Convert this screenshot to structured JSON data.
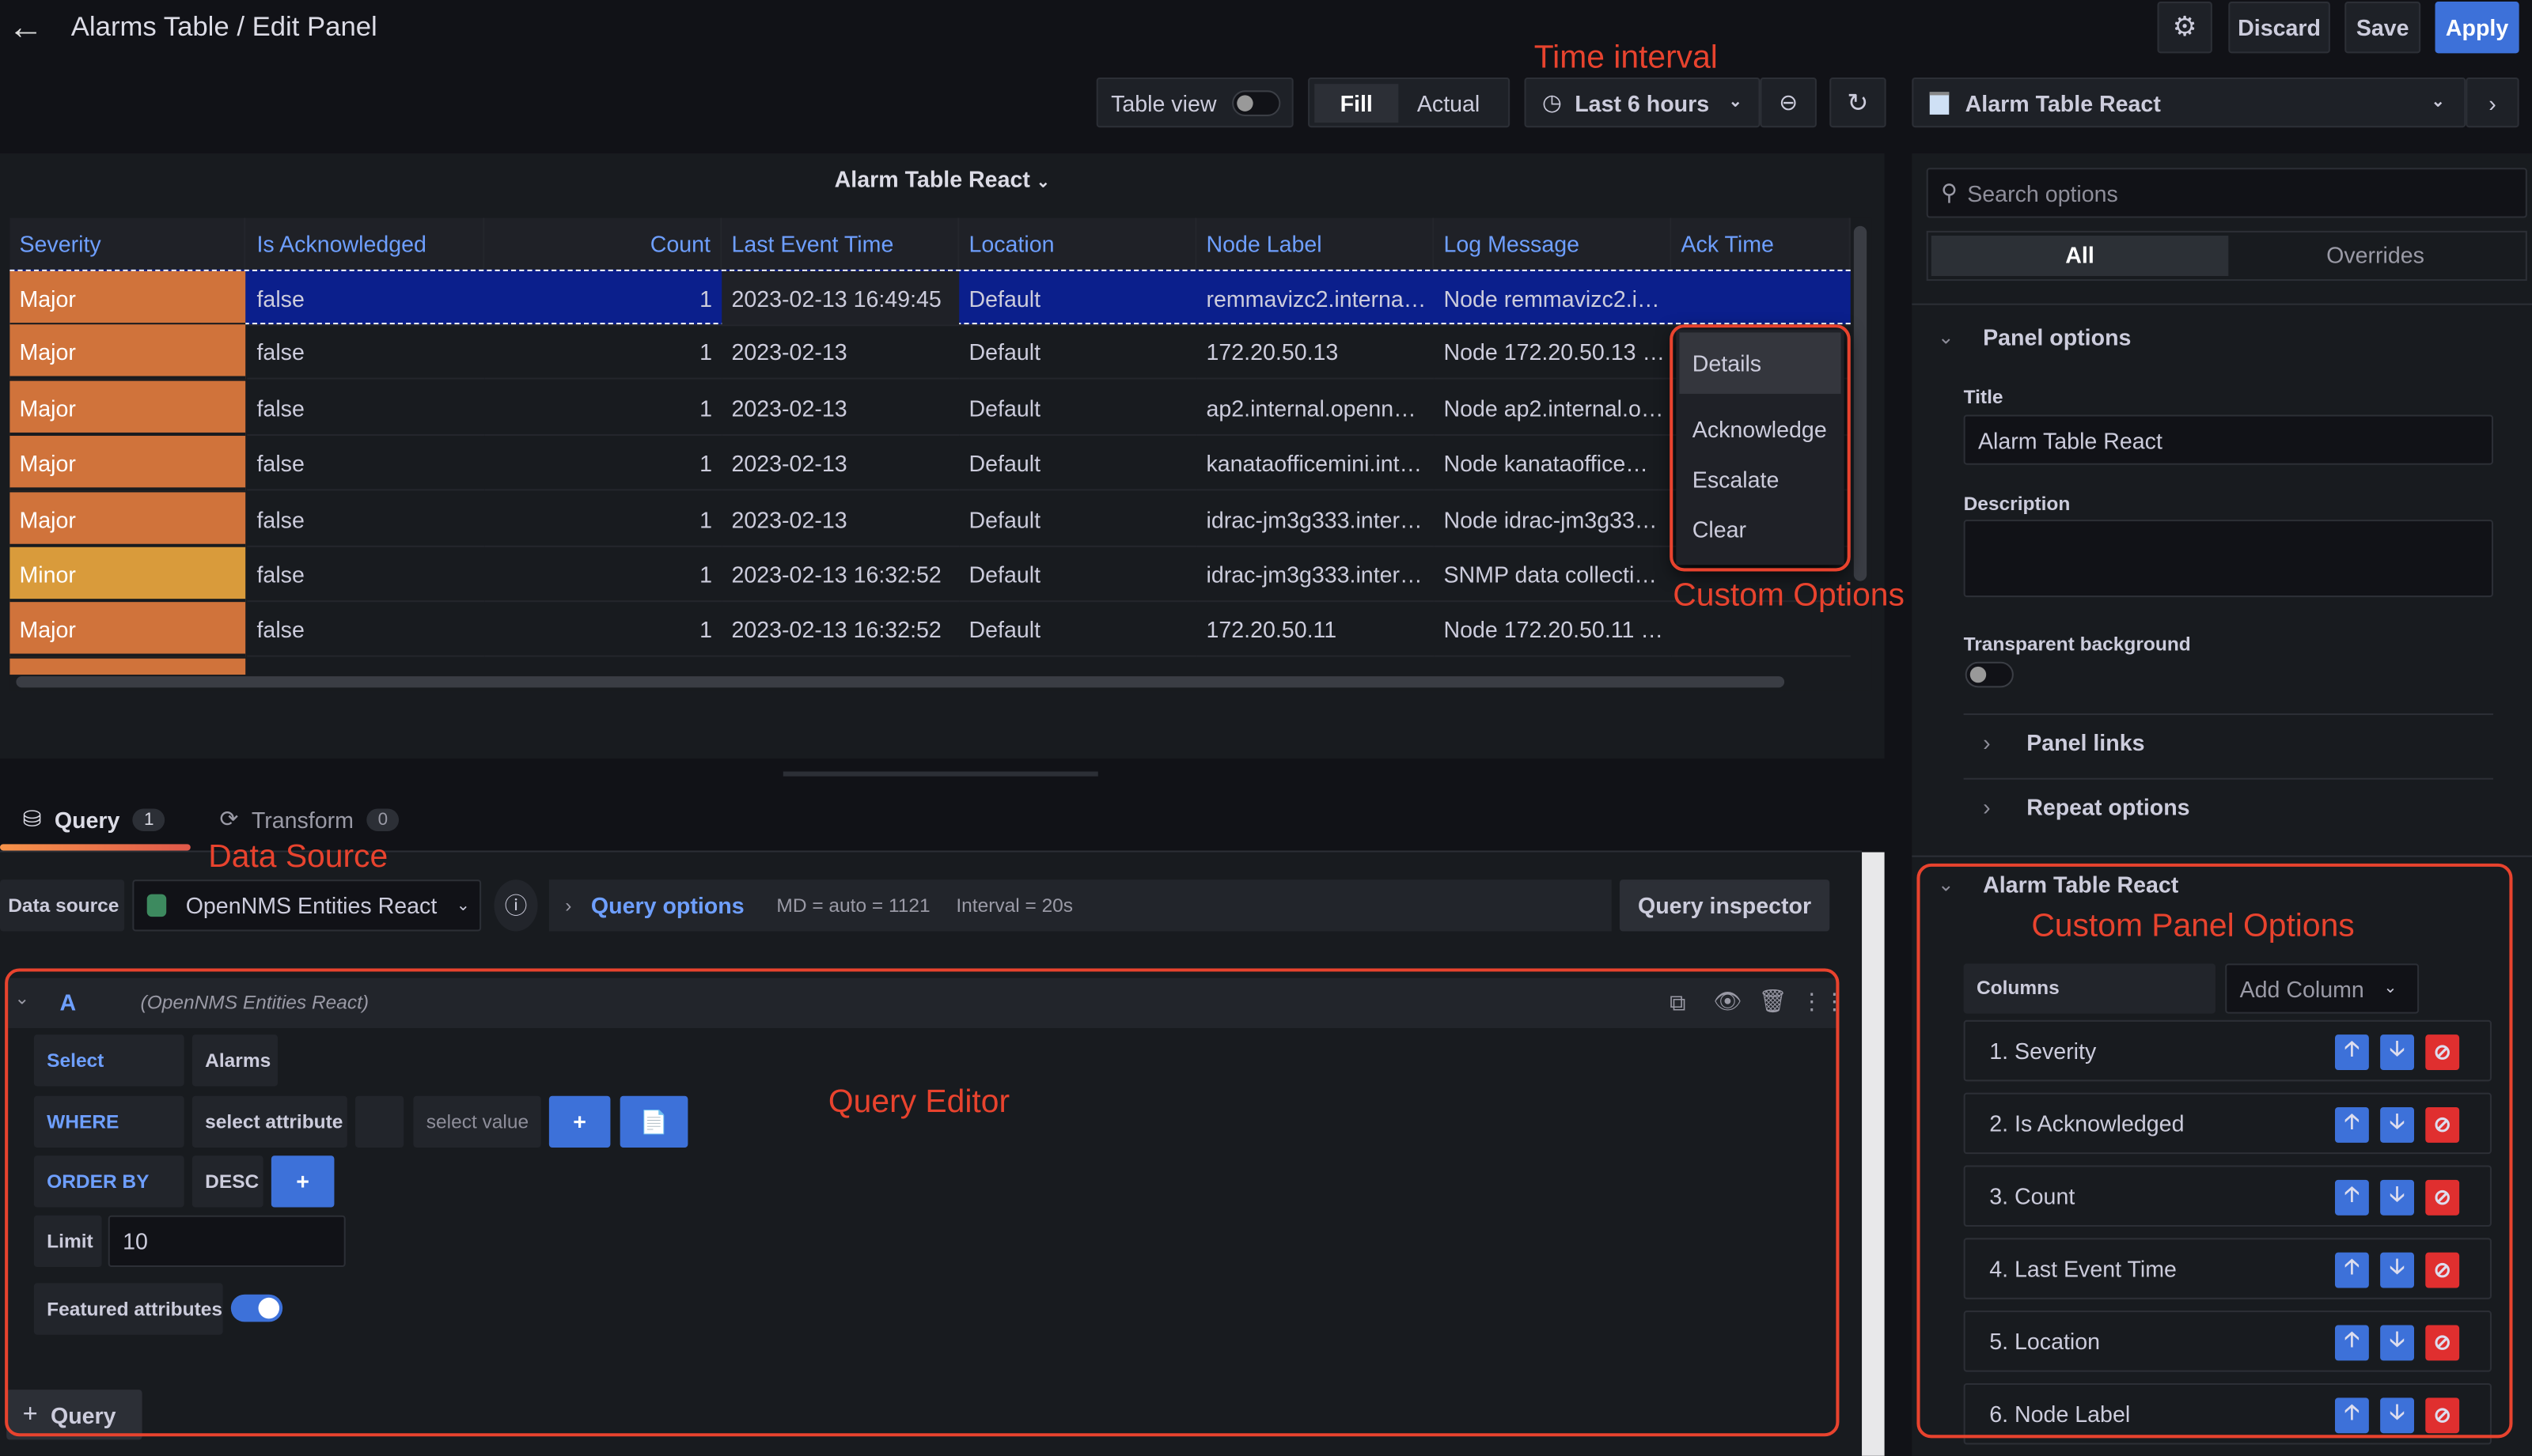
{
  "header": {
    "title": "Alarms Table / Edit Panel",
    "discard": "Discard",
    "save": "Save",
    "apply": "Apply"
  },
  "toolbar": {
    "table_view": "Table view",
    "table_view_on": false,
    "fill": "Fill",
    "actual": "Actual",
    "time_range": "Last 6 hours",
    "viz": "Alarm Table React"
  },
  "annotations": {
    "time": "Time interval",
    "custom": "Custom Options",
    "datasource": "Data Source",
    "query_editor": "Query Editor",
    "panel_options": "Custom Panel Options"
  },
  "panel": {
    "title": "Alarm Table React"
  },
  "table": {
    "columns": [
      "Severity",
      "Is Acknowledged",
      "Count",
      "Last Event Time",
      "Location",
      "Node Label",
      "Log Message",
      "Ack Time"
    ],
    "rows": [
      [
        "Major",
        "false",
        "1",
        "2023-02-13 16:49:45",
        "Default",
        "remmavizc2.interna…",
        "Node remmavizc2.i…",
        ""
      ],
      [
        "Major",
        "false",
        "1",
        "2023-02-13",
        "Default",
        "172.20.50.13",
        "Node 172.20.50.13 …",
        ""
      ],
      [
        "Major",
        "false",
        "1",
        "2023-02-13",
        "Default",
        "ap2.internal.openn…",
        "Node ap2.internal.o…",
        ""
      ],
      [
        "Major",
        "false",
        "1",
        "2023-02-13",
        "Default",
        "kanataofficemini.int…",
        "Node kanataoffice…",
        ""
      ],
      [
        "Major",
        "false",
        "1",
        "2023-02-13",
        "Default",
        "idrac-jm3g333.inter…",
        "Node idrac-jm3g33…",
        ""
      ],
      [
        "Minor",
        "false",
        "1",
        "2023-02-13 16:32:52",
        "Default",
        "idrac-jm3g333.inter…",
        "SNMP data collecti…",
        ""
      ],
      [
        "Major",
        "false",
        "1",
        "2023-02-13 16:32:52",
        "Default",
        "172.20.50.11",
        "Node 172.20.50.11 …",
        ""
      ]
    ],
    "severity_colors": {
      "Major": "#d0733b",
      "Minor": "#d99b3b"
    },
    "selected_row_color": "#0b1f8c"
  },
  "context_menu": [
    "Details",
    "Acknowledge",
    "Escalate",
    "Clear"
  ],
  "tabs": {
    "query": "Query",
    "query_count": "1",
    "transform": "Transform",
    "transform_count": "0"
  },
  "datasource": {
    "label": "Data source",
    "value": "OpenNMS Entities React",
    "query_options": "Query options",
    "md": "MD = auto = 1121",
    "interval": "Interval = 20s",
    "inspector": "Query inspector"
  },
  "query": {
    "ref": "A",
    "source": "(OpenNMS Entities React)",
    "select": "Select",
    "select_value": "Alarms",
    "where": "WHERE",
    "attr_placeholder": "select attribute",
    "value_placeholder": "select value",
    "order_by": "ORDER BY",
    "order": "DESC",
    "limit_label": "Limit",
    "limit": "10",
    "featured": "Featured attributes",
    "featured_on": true,
    "add_query": "Query"
  },
  "options": {
    "search_placeholder": "Search options",
    "tab_all": "All",
    "tab_overrides": "Overrides",
    "panel_options": "Panel options",
    "title_label": "Title",
    "title_value": "Alarm Table React",
    "description_label": "Description",
    "transparent_label": "Transparent background",
    "panel_links": "Panel links",
    "repeat_options": "Repeat options",
    "custom_section": "Alarm Table React",
    "columns_label": "Columns",
    "add_column": "Add Column",
    "columns": [
      "1. Severity",
      "2. Is Acknowledged",
      "3. Count",
      "4. Last Event Time",
      "5. Location",
      "6. Node Label"
    ]
  },
  "colors": {
    "accent": "#3d71d9",
    "annotation": "#e8432e",
    "delete": "#e02f2f"
  }
}
